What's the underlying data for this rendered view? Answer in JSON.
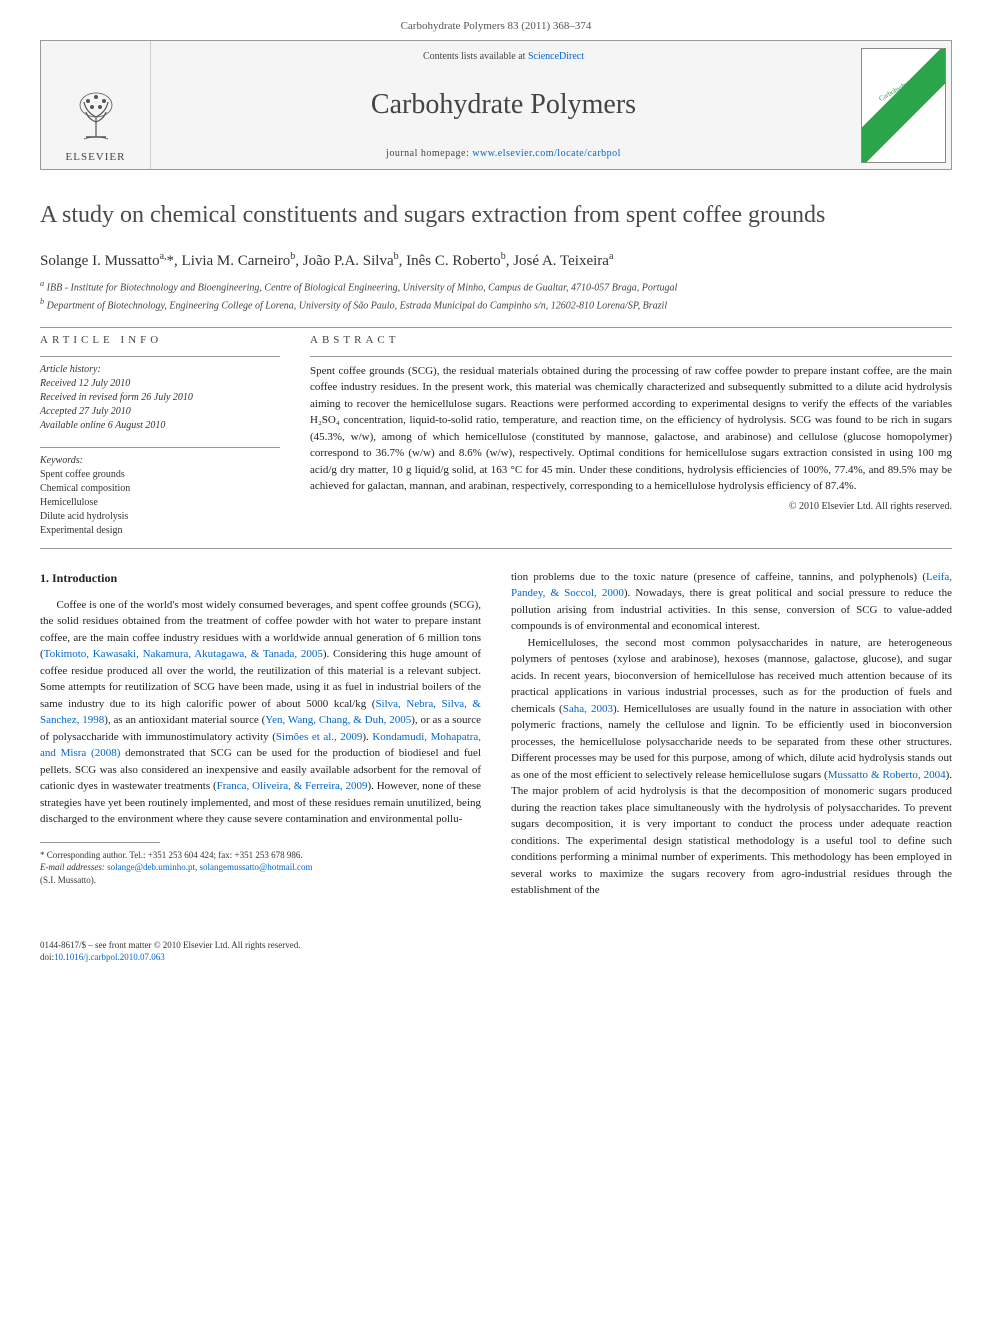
{
  "header": {
    "journal_ref": "Carbohydrate Polymers 83 (2011) 368–374",
    "contents_prefix": "Contents lists available at ",
    "contents_link": "ScienceDirect",
    "journal_name": "Carbohydrate Polymers",
    "homepage_prefix": "journal homepage: ",
    "homepage_link": "www.elsevier.com/locate/carbpol",
    "elsevier_label": "ELSEVIER",
    "cover_label": "Carbohydrate Polymers"
  },
  "article": {
    "title": "A study on chemical constituents and sugars extraction from spent coffee grounds",
    "authors_html": "Solange I. Mussatto<sup>a,</sup>*, Livia M. Carneiro<sup>b</sup>, João P.A. Silva<sup>b</sup>, Inês C. Roberto<sup>b</sup>, José A. Teixeira<sup>a</sup>",
    "affiliations": [
      "a IBB - Institute for Biotechnology and Bioengineering, Centre of Biological Engineering, University of Minho, Campus de Gualtar, 4710-057 Braga, Portugal",
      "b Department of Biotechnology, Engineering College of Lorena, University of São Paulo, Estrada Municipal do Campinho s/n, 12602-810 Lorena/SP, Brazil"
    ]
  },
  "info": {
    "section_label": "ARTICLE INFO",
    "history_label": "Article history:",
    "history": [
      "Received 12 July 2010",
      "Received in revised form 26 July 2010",
      "Accepted 27 July 2010",
      "Available online 6 August 2010"
    ],
    "keywords_label": "Keywords:",
    "keywords": [
      "Spent coffee grounds",
      "Chemical composition",
      "Hemicellulose",
      "Dilute acid hydrolysis",
      "Experimental design"
    ]
  },
  "abstract": {
    "section_label": "ABSTRACT",
    "text": "Spent coffee grounds (SCG), the residual materials obtained during the processing of raw coffee powder to prepare instant coffee, are the main coffee industry residues. In the present work, this material was chemically characterized and subsequently submitted to a dilute acid hydrolysis aiming to recover the hemicellulose sugars. Reactions were performed according to experimental designs to verify the effects of the variables H₂SO₄ concentration, liquid-to-solid ratio, temperature, and reaction time, on the efficiency of hydrolysis. SCG was found to be rich in sugars (45.3%, w/w), among of which hemicellulose (constituted by mannose, galactose, and arabinose) and cellulose (glucose homopolymer) correspond to 36.7% (w/w) and 8.6% (w/w), respectively. Optimal conditions for hemicellulose sugars extraction consisted in using 100 mg acid/g dry matter, 10 g liquid/g solid, at 163 °C for 45 min. Under these conditions, hydrolysis efficiencies of 100%, 77.4%, and 89.5% may be achieved for galactan, mannan, and arabinan, respectively, corresponding to a hemicellulose hydrolysis efficiency of 87.4%.",
    "copyright": "© 2010 Elsevier Ltd. All rights reserved."
  },
  "body": {
    "intro_heading": "1. Introduction",
    "col1_p1": "Coffee is one of the world's most widely consumed beverages, and spent coffee grounds (SCG), the solid residues obtained from the treatment of coffee powder with hot water to prepare instant coffee, are the main coffee industry residues with a worldwide annual generation of 6 million tons (Tokimoto, Kawasaki, Nakamura, Akutagawa, & Tanada, 2005). Considering this huge amount of coffee residue produced all over the world, the reutilization of this material is a relevant subject. Some attempts for reutilization of SCG have been made, using it as fuel in industrial boilers of the same industry due to its high calorific power of about 5000 kcal/kg (Silva, Nebra, Silva, & Sanchez, 1998), as an antioxidant material source (Yen, Wang, Chang, & Duh, 2005), or as a source of polysaccharide with immunostimulatory activity (Simões et al., 2009). Kondamudi, Mohapatra, and Misra (2008) demonstrated that SCG can be used for the production of biodiesel and fuel pellets. SCG was also considered an inexpensive and easily available adsorbent for the removal of cationic dyes in wastewater treatments (Franca, Oliveira, & Ferreira, 2009). However, none of these strategies have yet been routinely implemented, and most of these residues remain unutilized, being discharged to the environment where they cause severe contamination and environmental pollu-",
    "col2_p1": "tion problems due to the toxic nature (presence of caffeine, tannins, and polyphenols) (Leifa, Pandey, & Soccol, 2000). Nowadays, there is great political and social pressure to reduce the pollution arising from industrial activities. In this sense, conversion of SCG to value-added compounds is of environmental and economical interest.",
    "col2_p2": "Hemicelluloses, the second most common polysaccharides in nature, are heterogeneous polymers of pentoses (xylose and arabinose), hexoses (mannose, galactose, glucose), and sugar acids. In recent years, bioconversion of hemicellulose has received much attention because of its practical applications in various industrial processes, such as for the production of fuels and chemicals (Saha, 2003). Hemicelluloses are usually found in the nature in association with other polymeric fractions, namely the cellulose and lignin. To be efficiently used in bioconversion processes, the hemicellulose polysaccharide needs to be separated from these other structures. Different processes may be used for this purpose, among of which, dilute acid hydrolysis stands out as one of the most efficient to selectively release hemicellulose sugars (Mussatto & Roberto, 2004). The major problem of acid hydrolysis is that the decomposition of monomeric sugars produced during the reaction takes place simultaneously with the hydrolysis of polysaccharides. To prevent sugars decomposition, it is very important to conduct the process under adequate reaction conditions. The experimental design statistical methodology is a useful tool to define such conditions performing a minimal number of experiments. This methodology has been employed in several works to maximize the sugars recovery from agro-industrial residues through the establishment of the"
  },
  "footnote": {
    "corresponding": "* Corresponding author. Tel.: +351 253 604 424; fax: +351 253 678 986.",
    "email_label": "E-mail addresses: ",
    "email1": "solange@deb.uminho.pt",
    "email_sep": ", ",
    "email2": "solangemussatto@hotmail.com",
    "name": "(S.I. Mussatto)."
  },
  "footer": {
    "issn": "0144-8617/$ – see front matter © 2010 Elsevier Ltd. All rights reserved.",
    "doi_label": "doi:",
    "doi": "10.1016/j.carbpol.2010.07.063"
  },
  "colors": {
    "link": "#0066cc",
    "title": "#4a4a4a",
    "cover_green": "#2aa54a",
    "elsevier_orange": "#ff6a00"
  }
}
